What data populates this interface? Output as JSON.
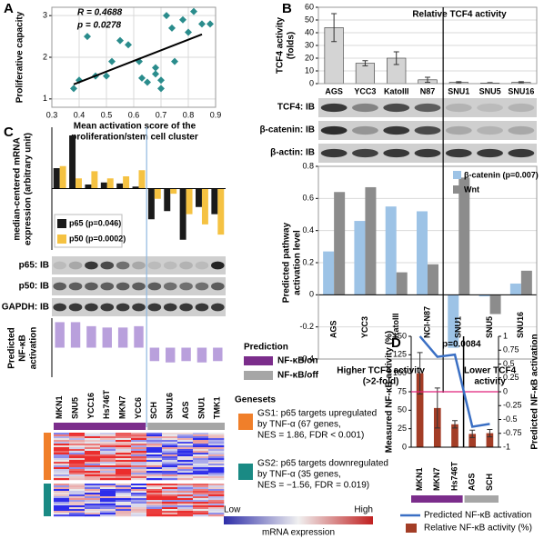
{
  "panel_labels": [
    "A",
    "B",
    "C",
    "D"
  ],
  "blots_b": [
    "TCF4: IB",
    "β-catenin: IB",
    "β-actin: IB"
  ],
  "blots_c": [
    "p65: IB",
    "p50: IB",
    "GAPDH: IB"
  ],
  "prediction_legend": {
    "title": "Prediction",
    "items": [
      "NF-κB/on",
      "NF-κB/off"
    ],
    "colors": [
      "#7b2d8b",
      "#a6a6a6"
    ]
  },
  "genesets": {
    "title": "Genesets",
    "gs1": [
      "GS1: p65 targets upregulated",
      "by TNF-α (67 genes,",
      "NES = 1.86, FDR < 0.001)"
    ],
    "gs1_color": "#f07f2a",
    "gs2": [
      "GS2: p65 targets downregulated",
      "by TNF-α (35 genes,",
      "NES = −1.56, FDR = 0.019)"
    ],
    "gs2_color": "#1a8a84"
  },
  "color_scale": {
    "low": "Low",
    "high": "High",
    "label": "mRNA expression"
  },
  "chart_data": [
    {
      "type": "scatter",
      "annotations": [
        "R = 0.4688",
        "p = 0.0278"
      ],
      "xlabel": [
        "Mean activation score of the",
        "proliferation/stem cell cluster"
      ],
      "ylabel": [
        "Proliferative capacity"
      ],
      "x": [
        0.38,
        0.4,
        0.43,
        0.46,
        0.5,
        0.52,
        0.55,
        0.58,
        0.62,
        0.63,
        0.65,
        0.68,
        0.68,
        0.7,
        0.7,
        0.72,
        0.74,
        0.75,
        0.78,
        0.8,
        0.82,
        0.85,
        0.88
      ],
      "values": [
        1.25,
        1.45,
        2.5,
        1.55,
        1.55,
        1.9,
        2.4,
        2.3,
        1.9,
        1.5,
        1.4,
        1.6,
        1.75,
        1.25,
        1.45,
        3.0,
        2.7,
        1.9,
        2.9,
        2.6,
        3.1,
        2.8,
        2.8
      ],
      "fit": {
        "x": [
          0.38,
          0.85
        ],
        "y": [
          1.35,
          2.55
        ]
      },
      "color": "#2a8c8c",
      "xlim": [
        0.3,
        0.9
      ],
      "xticks": [
        0.3,
        0.4,
        0.5,
        0.6,
        0.7,
        0.8,
        0.9
      ],
      "ylim": [
        0.8,
        3.2
      ],
      "yticks": [
        1,
        2,
        3
      ],
      "grid": true
    },
    {
      "type": "bar",
      "title": "Relative TCF4 activity",
      "ylabel": [
        "TCF4 activity",
        "(folds)"
      ],
      "categories": [
        "AGS",
        "YCC3",
        "KatoIII",
        "N87",
        "SNU1",
        "SNU5",
        "SNU16"
      ],
      "values": [
        44,
        16,
        20,
        3,
        1,
        0.5,
        1
      ],
      "errors": [
        11,
        2,
        5,
        2,
        0.5,
        0.3,
        0.5
      ],
      "color": "#d4d4d4",
      "ylim": [
        0,
        60
      ],
      "yticks": [
        0,
        10,
        20,
        30,
        40,
        50,
        60
      ],
      "grid": true
    },
    {
      "type": "bar",
      "ylabel": [
        "Predicted pathway",
        "activation level"
      ],
      "categories": [
        "AGS",
        "YCC3",
        "KatoIII",
        "NCI-N87",
        "SNU1",
        "SNU5",
        "SNU16"
      ],
      "series": [
        {
          "name": "β-catenin (p=0.007)",
          "color": "#9dc3e6",
          "values": [
            0.27,
            0.46,
            0.55,
            0.52,
            -0.33,
            -0.01,
            0.07
          ]
        },
        {
          "name": "Wnt",
          "color": "#8c8c8c",
          "values": [
            0.64,
            0.67,
            0.14,
            0.19,
            0.73,
            -0.12,
            0.15
          ]
        }
      ],
      "group_labels": [
        [
          "Higher TCF4 activity",
          "(>2-fold)"
        ],
        [
          "Lower TCF4",
          "activity"
        ]
      ],
      "ylim": [
        -0.4,
        0.8
      ],
      "yticks": [
        -0.4,
        -0.2,
        0,
        0.2,
        0.4,
        0.6,
        0.8
      ],
      "grid": true
    },
    {
      "type": "bar",
      "ylabel": [
        "median-centered mRNA",
        "expression (arbitrary unit)"
      ],
      "series": [
        {
          "name": "p65 (p=0.046)",
          "color": "#1a1a1a",
          "values": [
            0.2,
            0.52,
            0.04,
            0.06,
            0.05,
            0.02,
            -0.3,
            -0.22,
            -0.5,
            -0.18,
            -0.25
          ]
        },
        {
          "name": "p50 (p=0.0002)",
          "color": "#f5c242",
          "values": [
            0.22,
            0.1,
            0.17,
            0.1,
            0.12,
            0.18,
            -0.1,
            -0.05,
            -0.25,
            -0.35,
            -0.45
          ]
        }
      ],
      "ylim": [
        -0.6,
        0.6
      ]
    },
    {
      "type": "bar",
      "ylabel": [
        "Predicted",
        "NF-κB",
        "activation"
      ],
      "categories": [
        "MKN1",
        "SNU5",
        "YCC16",
        "Hs746T",
        "MKN7",
        "YCC6",
        "SCH",
        "SNU16",
        "AGS",
        "SNU1",
        "TMK1"
      ],
      "values": [
        0.95,
        0.95,
        0.8,
        0.75,
        0.75,
        0.8,
        -0.5,
        -0.55,
        -0.5,
        -0.55,
        -0.5
      ],
      "color": "#b9a0dc",
      "ylim": [
        -1.1,
        1.1
      ]
    },
    {
      "type": "combo",
      "annotations": [
        "p=0.0084"
      ],
      "ylabel": [
        "Measured NF-κB activity (%)"
      ],
      "y2label": [
        "Predicted NF-κB activation"
      ],
      "categories": [
        "MKN1",
        "MKN7",
        "Hs746T",
        "AGS",
        "SCH"
      ],
      "series": [
        {
          "name": "Relative NF-κB activity (%)",
          "type": "bar",
          "color": "#a33d26",
          "values": [
            100,
            53,
            31,
            18,
            19
          ],
          "errors": [
            28,
            27,
            5,
            5,
            5
          ]
        },
        {
          "name": "Predicted NF-κB activation",
          "type": "line",
          "axis": "y2",
          "color": "#3a6fc4",
          "values": [
            1,
            0.63,
            0.67,
            -0.63,
            -0.58
          ]
        }
      ],
      "ylim": [
        0,
        150
      ],
      "yticks": [
        0,
        25,
        50,
        75,
        100,
        125,
        150
      ],
      "y2lim": [
        -1,
        1
      ],
      "y2ticks": [
        -1,
        -0.75,
        -0.5,
        -0.25,
        0,
        0.25,
        0.5,
        0.75,
        1
      ]
    }
  ]
}
